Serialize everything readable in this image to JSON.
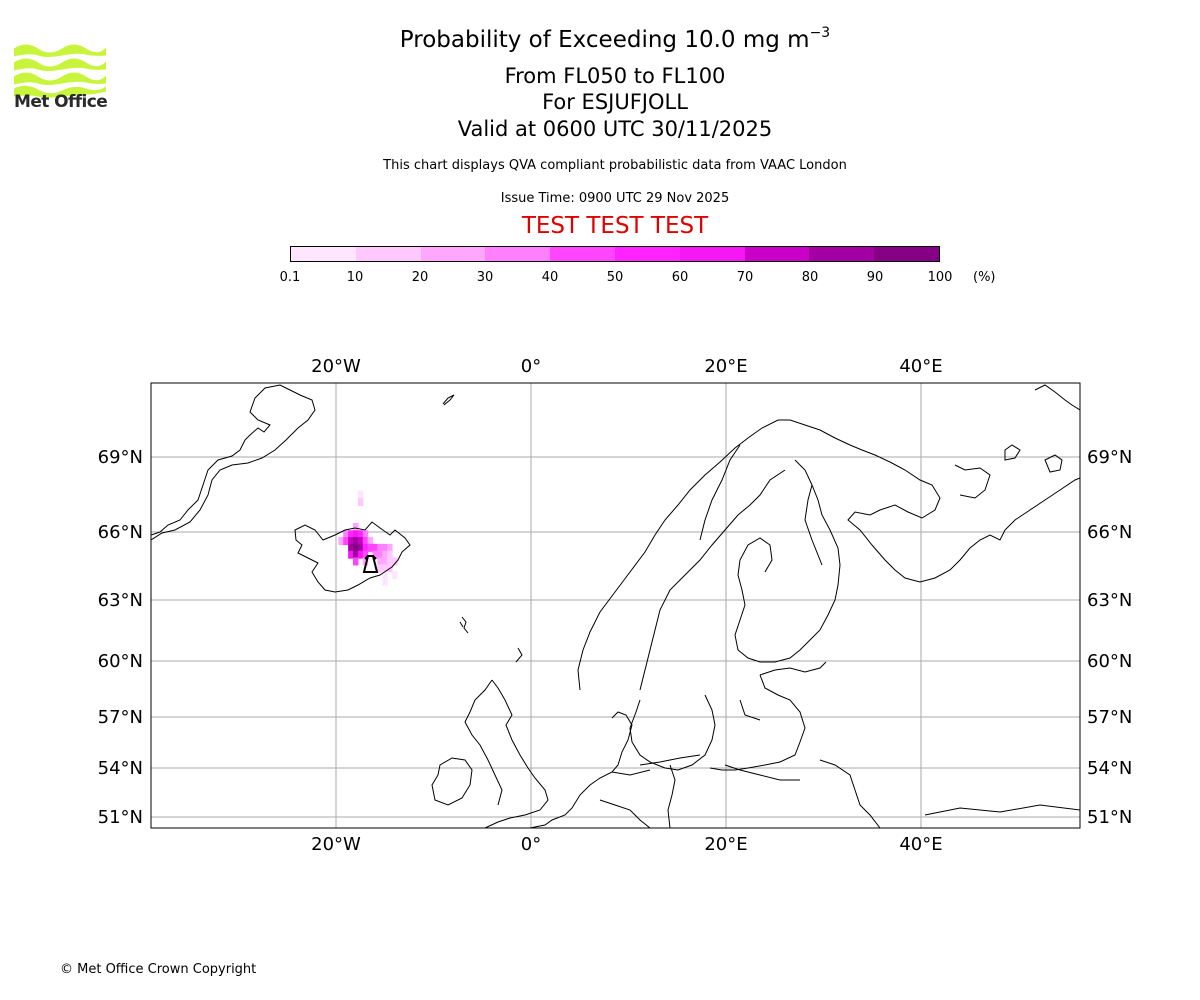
{
  "header": {
    "title_main": "Probability of Exceeding 10.0 mg m",
    "title_exponent": "−3",
    "flight_levels": "From FL050 to FL100",
    "volcano": "For ESJUFJOLL",
    "valid_time": "Valid at 0600 UTC 30/11/2025",
    "note": "This chart displays QVA compliant probabilistic data from VAAC London",
    "issue_time": "Issue Time: 0900 UTC 29 Nov 2025",
    "test_banner": "TEST TEST TEST"
  },
  "logo": {
    "text": "Met Office",
    "color": "#c8f53c"
  },
  "colorbar": {
    "ticks": [
      "0.1",
      "10",
      "20",
      "30",
      "40",
      "50",
      "60",
      "70",
      "80",
      "90",
      "100"
    ],
    "unit": "(%)",
    "colors": [
      "#ffe6ff",
      "#ffc8ff",
      "#ffa6ff",
      "#ff80ff",
      "#ff45ff",
      "#ff24ff",
      "#f518f5",
      "#c800c8",
      "#a300a3",
      "#850085",
      "#5c005c"
    ]
  },
  "map": {
    "lon_labels": [
      "20°W",
      "0°",
      "20°E",
      "40°E"
    ],
    "lat_labels": [
      "69°N",
      "66°N",
      "63°N",
      "60°N",
      "57°N",
      "54°N",
      "51°N"
    ],
    "gridline_color": "#aaaaaa"
  },
  "plume": {
    "source": "ESJUFJOLL",
    "cells": [
      {
        "lon": -17.5,
        "lat": 67.5,
        "pct": 5
      },
      {
        "lon": -17.5,
        "lat": 67.2,
        "pct": 15
      },
      {
        "lon": -18.0,
        "lat": 66.2,
        "pct": 25
      },
      {
        "lon": -19.0,
        "lat": 65.9,
        "pct": 35
      },
      {
        "lon": -18.5,
        "lat": 65.9,
        "pct": 55
      },
      {
        "lon": -18.0,
        "lat": 65.9,
        "pct": 65
      },
      {
        "lon": -17.5,
        "lat": 65.9,
        "pct": 55
      },
      {
        "lon": -17.0,
        "lat": 65.9,
        "pct": 35
      },
      {
        "lon": -19.5,
        "lat": 65.6,
        "pct": 25
      },
      {
        "lon": -19.0,
        "lat": 65.6,
        "pct": 45
      },
      {
        "lon": -18.5,
        "lat": 65.6,
        "pct": 75
      },
      {
        "lon": -18.0,
        "lat": 65.6,
        "pct": 85
      },
      {
        "lon": -17.5,
        "lat": 65.6,
        "pct": 75
      },
      {
        "lon": -17.0,
        "lat": 65.6,
        "pct": 45
      },
      {
        "lon": -16.5,
        "lat": 65.6,
        "pct": 25
      },
      {
        "lon": -18.5,
        "lat": 65.3,
        "pct": 80
      },
      {
        "lon": -18.0,
        "lat": 65.3,
        "pct": 92
      },
      {
        "lon": -17.5,
        "lat": 65.3,
        "pct": 80
      },
      {
        "lon": -17.0,
        "lat": 65.3,
        "pct": 55
      },
      {
        "lon": -16.5,
        "lat": 65.3,
        "pct": 45
      },
      {
        "lon": -16.0,
        "lat": 65.3,
        "pct": 40
      },
      {
        "lon": -15.5,
        "lat": 65.3,
        "pct": 35
      },
      {
        "lon": -15.0,
        "lat": 65.3,
        "pct": 30
      },
      {
        "lon": -14.5,
        "lat": 65.3,
        "pct": 20
      },
      {
        "lon": -18.5,
        "lat": 65.0,
        "pct": 60
      },
      {
        "lon": -18.0,
        "lat": 65.0,
        "pct": 85
      },
      {
        "lon": -17.5,
        "lat": 65.0,
        "pct": 60
      },
      {
        "lon": -17.0,
        "lat": 65.0,
        "pct": 40
      },
      {
        "lon": -16.0,
        "lat": 65.0,
        "pct": 35
      },
      {
        "lon": -15.5,
        "lat": 65.0,
        "pct": 30
      },
      {
        "lon": -15.0,
        "lat": 65.0,
        "pct": 25
      },
      {
        "lon": -14.5,
        "lat": 65.0,
        "pct": 15
      },
      {
        "lon": -18.0,
        "lat": 64.7,
        "pct": 45
      },
      {
        "lon": -17.0,
        "lat": 64.7,
        "pct": 25
      },
      {
        "lon": -15.5,
        "lat": 64.7,
        "pct": 25
      },
      {
        "lon": -15.0,
        "lat": 64.7,
        "pct": 20
      },
      {
        "lon": -14.5,
        "lat": 64.7,
        "pct": 15
      },
      {
        "lon": -14.0,
        "lat": 64.7,
        "pct": 10
      },
      {
        "lon": -15.5,
        "lat": 64.4,
        "pct": 15
      },
      {
        "lon": -15.0,
        "lat": 64.4,
        "pct": 10
      },
      {
        "lon": -14.5,
        "lat": 64.4,
        "pct": 10
      },
      {
        "lon": -15.0,
        "lat": 64.1,
        "pct": 5
      },
      {
        "lon": -14.0,
        "lat": 64.1,
        "pct": 5
      },
      {
        "lon": -15.0,
        "lat": 63.8,
        "pct": 5
      }
    ]
  },
  "footer": {
    "copyright": "© Met Office Crown Copyright"
  }
}
